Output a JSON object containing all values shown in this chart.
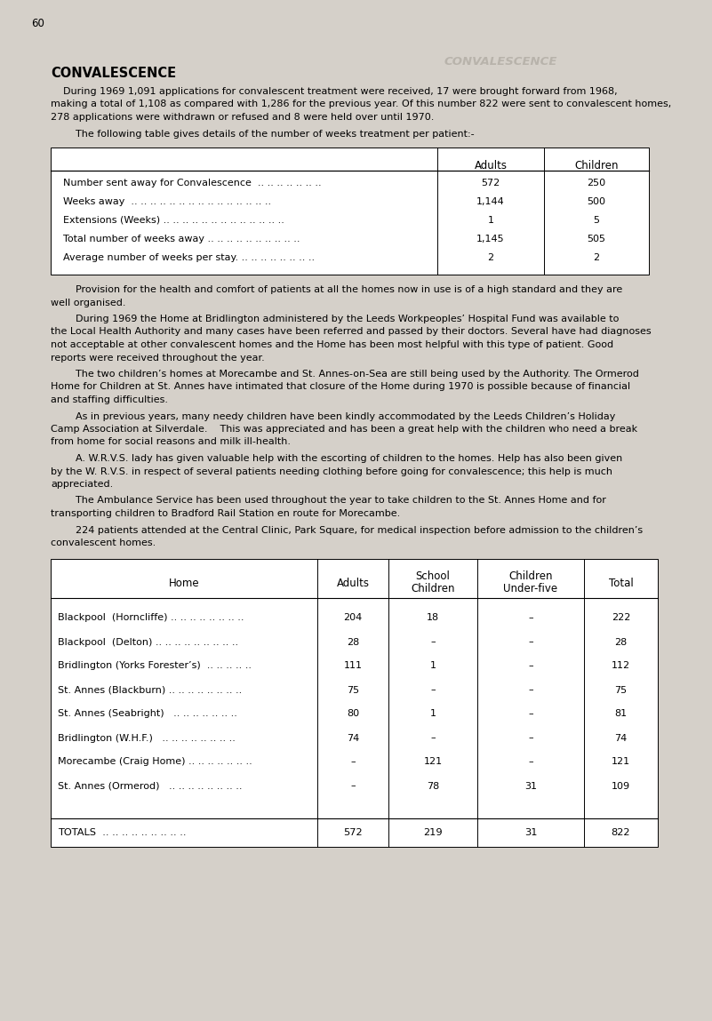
{
  "page_number": "60",
  "bg_color": "#d5d0c9",
  "title": "CONVALESCENCE",
  "ghost_text": "CONVALESCENCE",
  "para1_indent": "    During 1969 1,091 applications for convalescent treatment were received, 17 were brought forward from 1968,",
  "para1_line2": "making a total of 1,108 as compared with 1,286 for the previous year. Of this number 822 were sent to convalescent homes,",
  "para1_line3": "278 applications were withdrawn or refused and 8 were held over until 1970.",
  "para2": "        The following table gives details of the number of weeks treatment per patient:-",
  "table1_rows": [
    [
      "Number sent away for Convalescence  .. .. .. .. .. .. ..",
      "572",
      "250"
    ],
    [
      "Weeks away  .. .. .. .. .. .. .. .. .. .. .. .. .. .. ..",
      "1,144",
      "500"
    ],
    [
      "Extensions (Weeks) .. .. .. .. .. .. .. .. .. .. .. .. ..",
      "1",
      "5"
    ],
    [
      "Total number of weeks away .. .. .. .. .. .. .. .. .. ..",
      "1,145",
      "505"
    ],
    [
      "Average number of weeks per stay. .. .. .. .. .. .. .. ..",
      "2",
      "2"
    ]
  ],
  "para3_indent": "        Provision for the health and comfort of patients at all the homes now in use is of a high standard and they are",
  "para3_line2": "well organised.",
  "para4_indent": "        During 1969 the Home at Bridlington administered by the Leeds Workpeoples’ Hospital Fund was available to",
  "para4_line2": "the Local Health Authority and many cases have been referred and passed by their doctors. Several have had diagnoses",
  "para4_line3": "not acceptable at other convalescent homes and the Home has been most helpful with this type of patient. Good",
  "para4_line4": "reports were received throughout the year.",
  "para5_indent": "        The two children’s homes at Morecambe and St. Annes-on-Sea are still being used by the Authority. The Ormerod",
  "para5_line2": "Home for Children at St. Annes have intimated that closure of the Home during 1970 is possible because of financial",
  "para5_line3": "and staffing difficulties.",
  "para6_indent": "        As in previous years, many needy children have been kindly accommodated by the Leeds Children’s Holiday",
  "para6_line2": "Camp Association at Silverdale.    This was appreciated and has been a great help with the children who need a break",
  "para6_line3": "from home for social reasons and milk ill-health.",
  "para7_indent": "        A. W.R.V.S. lady has given valuable help with the escorting of children to the homes. Help has also been given",
  "para7_line2": "by the W. R.V.S. in respect of several patients needing clothing before going for convalescence; this help is much",
  "para7_line3": "appreciated.",
  "para8_indent": "        The Ambulance Service has been used throughout the year to take children to the St. Annes Home and for",
  "para8_line2": "transporting children to Bradford Rail Station en route for Morecambe.",
  "para9_indent": "        224 patients attended at the Central Clinic, Park Square, for medical inspection before admission to the children’s",
  "para9_line2": "convalescent homes.",
  "table2_rows": [
    [
      "Blackpool  (Horncliffe) .. .. .. .. .. .. .. ..",
      "204",
      "18",
      "–",
      "222"
    ],
    [
      "Blackpool  (Delton) .. .. .. .. .. .. .. .. ..",
      "28",
      "–",
      "–",
      "28"
    ],
    [
      "Bridlington (Yorks Forester’s)  .. .. .. .. ..",
      "111",
      "1",
      "–",
      "112"
    ],
    [
      "St. Annes (Blackburn) .. .. .. .. .. .. .. ..",
      "75",
      "–",
      "–",
      "75"
    ],
    [
      "St. Annes (Seabright)   .. .. .. .. .. .. ..",
      "80",
      "1",
      "–",
      "81"
    ],
    [
      "Bridlington (W.H.F.)   .. .. .. .. .. .. .. ..",
      "74",
      "–",
      "–",
      "74"
    ],
    [
      "Morecambe (Craig Home) .. .. .. .. .. .. ..",
      "–",
      "121",
      "–",
      "121"
    ],
    [
      "St. Annes (Ormerod)   .. .. .. .. .. .. .. ..",
      "–",
      "78",
      "31",
      "109"
    ]
  ],
  "table2_totals": [
    "TOTALS  .. .. .. .. .. .. .. .. ..",
    "572",
    "219",
    "31",
    "822"
  ]
}
